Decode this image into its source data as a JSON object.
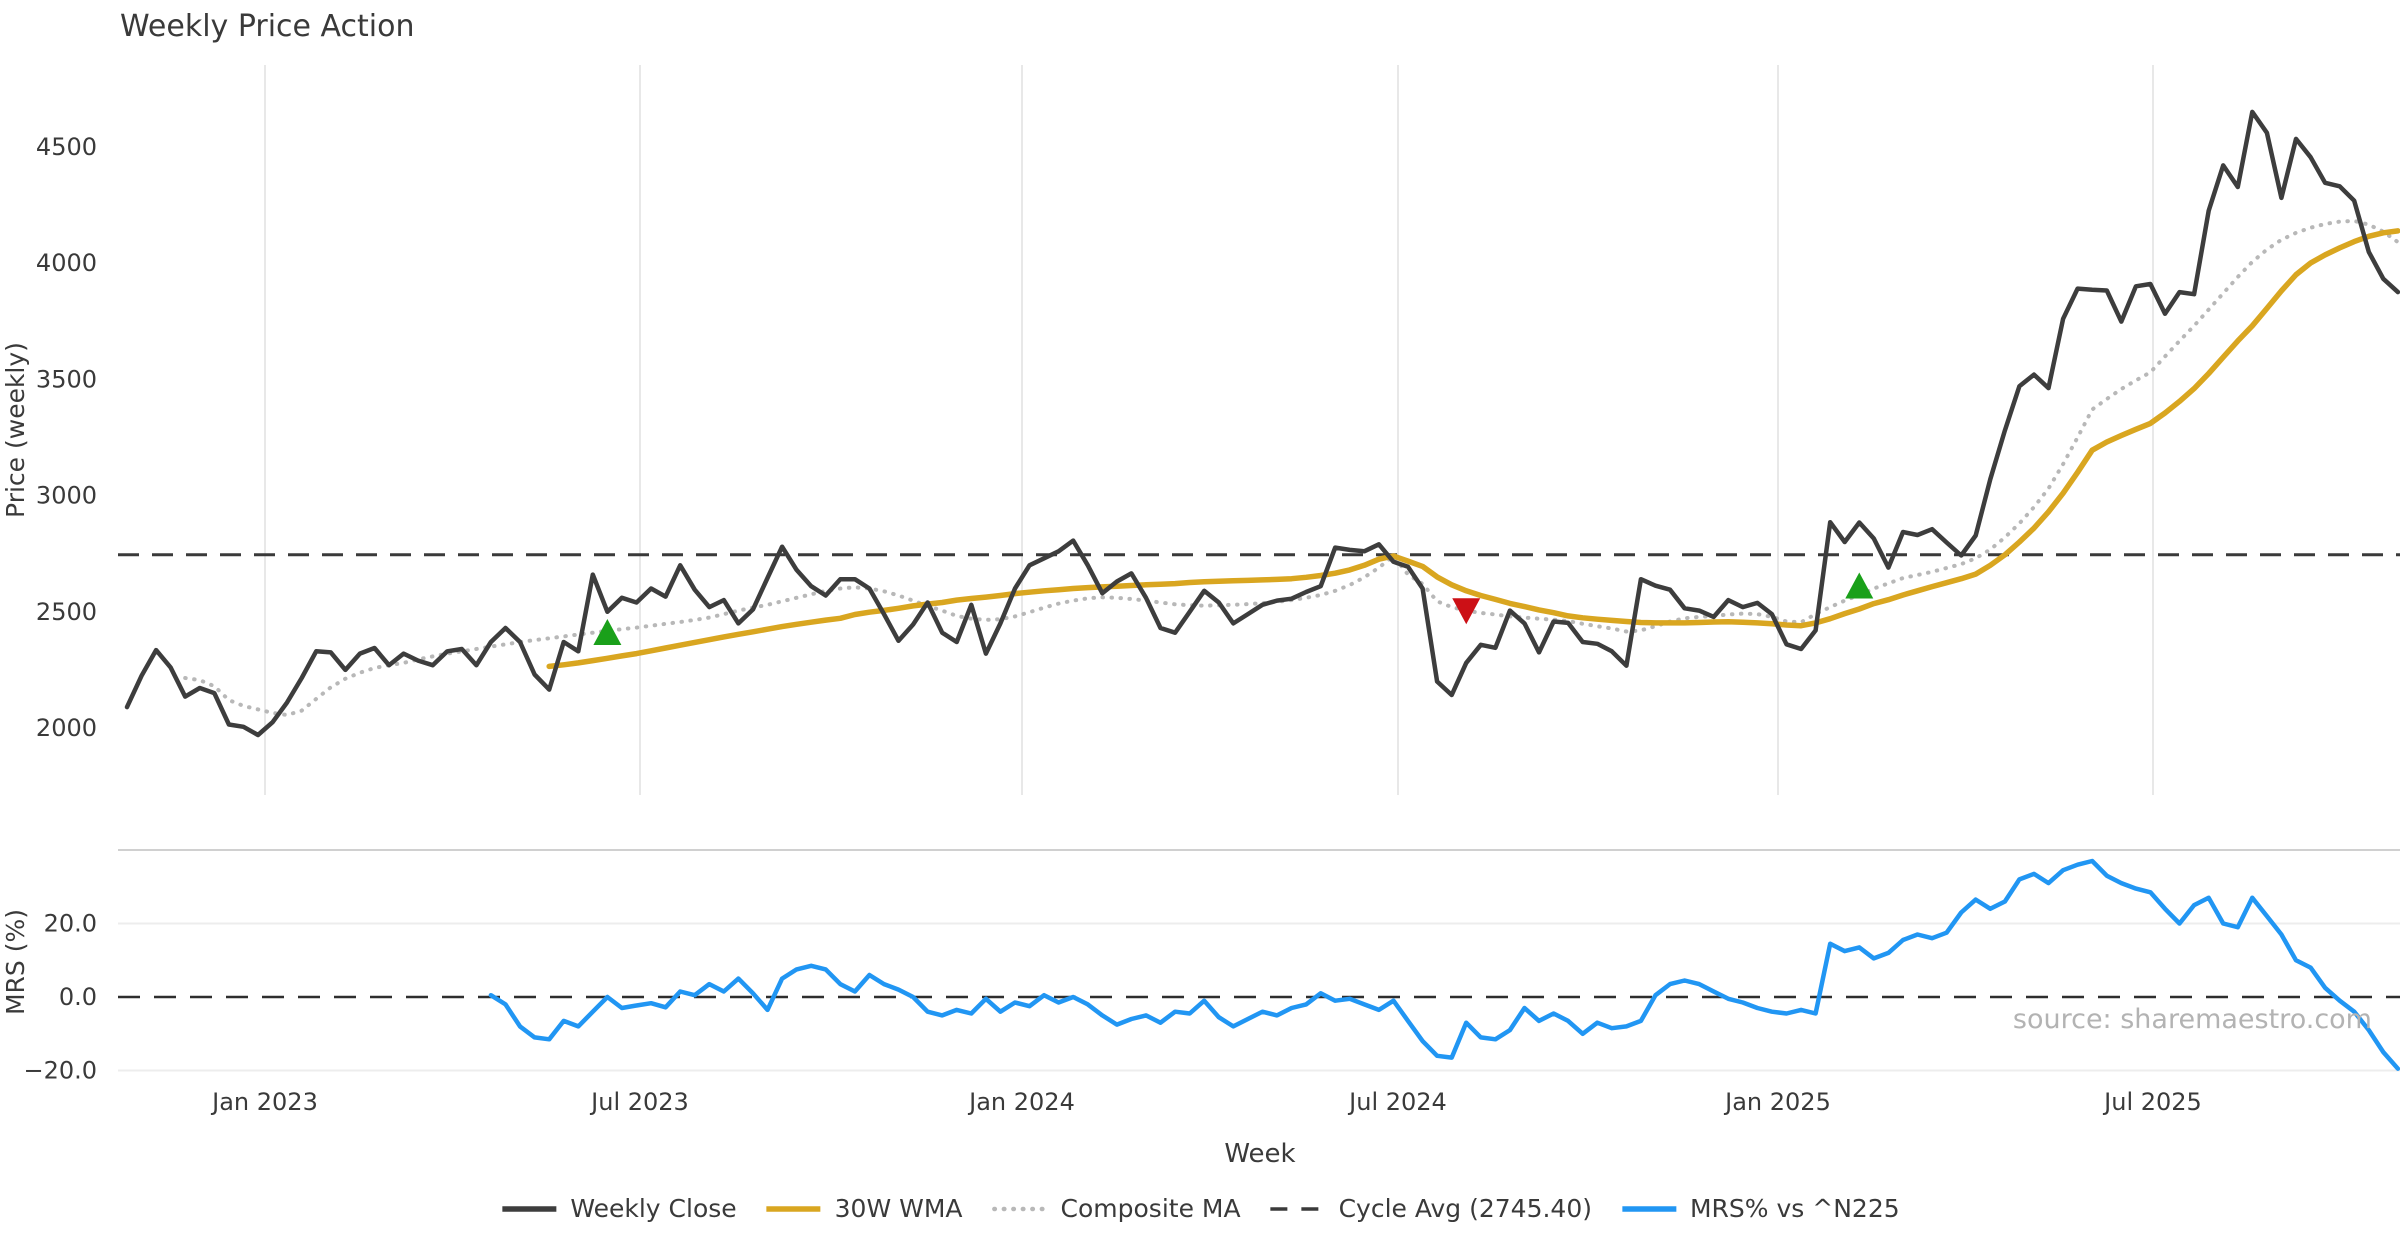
{
  "chart_data": {
    "type": "line",
    "title": "Weekly Price Action",
    "xlabel": "Week",
    "x_tick_labels": [
      "Jan 2023",
      "Jul 2023",
      "Jan 2024",
      "Jul 2024",
      "Jan 2025",
      "Jul 2025"
    ],
    "source_note": "source: sharemaestro.com",
    "legend": {
      "position": "bottom-center",
      "entries": [
        {
          "label": "Weekly Close",
          "color": "#3d3d3d",
          "style": "solid"
        },
        {
          "label": "30W WMA",
          "color": "#d9a620",
          "style": "solid"
        },
        {
          "label": "Composite MA",
          "color": "#b8b8b8",
          "style": "dotted"
        },
        {
          "label": "Cycle Avg (2745.40)",
          "color": "#3a3a3a",
          "style": "dashed"
        },
        {
          "label": "MRS% vs ^N225",
          "color": "#2196f3",
          "style": "solid"
        }
      ]
    },
    "panels": [
      {
        "id": "price",
        "ylabel": "Price (weekly)",
        "ylim": [
          1730,
          4850
        ],
        "ytick_labels": [
          "4500",
          "4000",
          "3500",
          "3000",
          "2500",
          "2000"
        ],
        "grid": "vertical-only",
        "cycle_avg": 2745.4,
        "series": [
          {
            "name": "Weekly Close",
            "color": "#3d3d3d",
            "style": "solid",
            "start_week": 0,
            "values": [
              2090,
              2225,
              2335,
              2260,
              2135,
              2172,
              2150,
              2015,
              2005,
              1970,
              2025,
              2110,
              2215,
              2330,
              2325,
              2250,
              2320,
              2344,
              2270,
              2320,
              2290,
              2270,
              2330,
              2340,
              2270,
              2370,
              2430,
              2370,
              2230,
              2165,
              2370,
              2330,
              2660,
              2500,
              2560,
              2540,
              2600,
              2565,
              2700,
              2595,
              2520,
              2550,
              2450,
              2510,
              2645,
              2780,
              2680,
              2610,
              2570,
              2640,
              2640,
              2600,
              2490,
              2375,
              2445,
              2540,
              2410,
              2370,
              2530,
              2320,
              2450,
              2600,
              2700,
              2730,
              2760,
              2806,
              2700,
              2580,
              2630,
              2665,
              2560,
              2430,
              2410,
              2500,
              2590,
              2540,
              2450,
              2490,
              2530,
              2548,
              2556,
              2585,
              2610,
              2776,
              2766,
              2760,
              2790,
              2715,
              2694,
              2600,
              2200,
              2142,
              2280,
              2358,
              2345,
              2505,
              2450,
              2325,
              2458,
              2452,
              2370,
              2362,
              2330,
              2268,
              2640,
              2612,
              2595,
              2515,
              2505,
              2478,
              2550,
              2520,
              2538,
              2490,
              2360,
              2340,
              2420,
              2885,
              2800,
              2884,
              2815,
              2690,
              2843,
              2830,
              2855,
              2798,
              2742,
              2828,
              3070,
              3280,
              3470,
              3520,
              3462,
              3760,
              3890,
              3885,
              3882,
              3748,
              3900,
              3910,
              3782,
              3875,
              3866,
              4225,
              4420,
              4327,
              4650,
              4560,
              4280,
              4534,
              4455,
              4345,
              4330,
              4268,
              4048,
              3932,
              3875
            ]
          },
          {
            "name": "30W WMA",
            "color": "#d9a620",
            "style": "solid",
            "start_week": 29,
            "values": [
              2265,
              2272,
              2280,
              2290,
              2300,
              2310,
              2320,
              2332,
              2344,
              2356,
              2368,
              2380,
              2392,
              2403,
              2414,
              2425,
              2436,
              2446,
              2455,
              2464,
              2472,
              2488,
              2498,
              2506,
              2515,
              2525,
              2533,
              2540,
              2550,
              2557,
              2563,
              2570,
              2578,
              2584,
              2590,
              2595,
              2600,
              2604,
              2607,
              2610,
              2613,
              2616,
              2618,
              2621,
              2626,
              2629,
              2631,
              2633,
              2635,
              2637,
              2639,
              2642,
              2648,
              2656,
              2666,
              2680,
              2700,
              2726,
              2740,
              2718,
              2695,
              2650,
              2616,
              2590,
              2570,
              2553,
              2536,
              2522,
              2508,
              2496,
              2482,
              2474,
              2468,
              2463,
              2458,
              2454,
              2452,
              2452,
              2452,
              2454,
              2456,
              2457,
              2455,
              2452,
              2448,
              2443,
              2440,
              2452,
              2470,
              2492,
              2512,
              2535,
              2552,
              2572,
              2590,
              2608,
              2625,
              2642,
              2662,
              2700,
              2745,
              2800,
              2860,
              2930,
              3010,
              3100,
              3195,
              3230,
              3258,
              3285,
              3310,
              3355,
              3405,
              3460,
              3525,
              3595,
              3665,
              3730,
              3805,
              3880,
              3950,
              4000,
              4035,
              4065,
              4092,
              4115,
              4130,
              4138
            ]
          },
          {
            "name": "Composite MA",
            "color": "#b8b8b8",
            "style": "dotted",
            "start_week": 4,
            "values": [
              2215,
              2206,
              2180,
              2120,
              2095,
              2080,
              2065,
              2056,
              2075,
              2125,
              2175,
              2212,
              2238,
              2258,
              2270,
              2280,
              2295,
              2308,
              2320,
              2330,
              2340,
              2350,
              2360,
              2370,
              2378,
              2386,
              2394,
              2402,
              2410,
              2418,
              2425,
              2432,
              2440,
              2448,
              2456,
              2465,
              2475,
              2490,
              2505,
              2518,
              2530,
              2545,
              2560,
              2575,
              2590,
              2600,
              2605,
              2600,
              2588,
              2570,
              2548,
              2525,
              2505,
              2482,
              2470,
              2465,
              2468,
              2480,
              2498,
              2518,
              2535,
              2548,
              2558,
              2562,
              2560,
              2555,
              2548,
              2540,
              2532,
              2528,
              2526,
              2528,
              2530,
              2533,
              2537,
              2543,
              2550,
              2560,
              2572,
              2590,
              2615,
              2648,
              2690,
              2740,
              2660,
              2620,
              2545,
              2520,
              2505,
              2495,
              2488,
              2480,
              2475,
              2470,
              2466,
              2460,
              2448,
              2438,
              2428,
              2415,
              2420,
              2438,
              2458,
              2472,
              2478,
              2482,
              2488,
              2492,
              2490,
              2478,
              2458,
              2455,
              2490,
              2520,
              2548,
              2572,
              2600,
              2622,
              2645,
              2658,
              2672,
              2688,
              2705,
              2730,
              2768,
              2820,
              2880,
              2950,
              3030,
              3135,
              3250,
              3370,
              3415,
              3458,
              3495,
              3530,
              3598,
              3665,
              3730,
              3800,
              3870,
              3940,
              4005,
              4058,
              4100,
              4130,
              4152,
              4168,
              4178,
              4181,
              4165,
              4135,
              4090
            ]
          }
        ],
        "signals": {
          "buy_color": "#1aa01a",
          "sell_color": "#cc1016",
          "buy": [
            {
              "week": 33,
              "price": 2400
            },
            {
              "week": 119,
              "price": 2600
            }
          ],
          "sell": [
            {
              "week": 92,
              "price": 2515
            }
          ]
        }
      },
      {
        "id": "mrs",
        "ylabel": "MRS (%)",
        "ylim": [
          -22,
          40
        ],
        "ytick_labels": [
          "20.0",
          "0.0",
          "−20.0"
        ],
        "grid": "horizontal-only",
        "zero_line": 0,
        "series": [
          {
            "name": "MRS% vs ^N225",
            "color": "#2196f3",
            "style": "solid",
            "start_week": 25,
            "values": [
              0.5,
              -2,
              -8,
              -11,
              -11.5,
              -6.5,
              -8,
              -4,
              0,
              -3,
              -2.3,
              -1.7,
              -2.8,
              1.5,
              0.5,
              3.5,
              1.5,
              5,
              1,
              -3.5,
              5,
              7.5,
              8.5,
              7.5,
              3.5,
              1.5,
              6,
              3.5,
              2,
              0,
              -4,
              -5,
              -3.5,
              -4.5,
              -0.5,
              -4,
              -1.5,
              -2.5,
              0.5,
              -1.5,
              0,
              -2,
              -5,
              -7.5,
              -6,
              -5,
              -7,
              -4,
              -4.5,
              -1,
              -5.5,
              -8,
              -6,
              -4,
              -5,
              -3,
              -2,
              1,
              -1,
              -0.5,
              -2,
              -3.5,
              -1,
              -6.5,
              -12,
              -16,
              -16.5,
              -7,
              -11,
              -11.5,
              -9,
              -3,
              -6.5,
              -4.5,
              -6.5,
              -10,
              -7,
              -8.5,
              -8,
              -6.5,
              0.5,
              3.5,
              4.5,
              3.5,
              1.5,
              -0.5,
              -1.5,
              -3,
              -4,
              -4.5,
              -3.5,
              -4.5,
              14.5,
              12.5,
              13.5,
              10.5,
              12,
              15.5,
              17,
              16,
              17.5,
              23,
              26.5,
              24,
              26,
              32,
              33.5,
              31,
              34.5,
              36,
              37,
              33,
              31,
              29.5,
              28.5,
              24,
              20,
              25,
              27,
              20,
              19,
              27,
              22,
              17,
              10,
              8,
              2.5,
              -1,
              -4,
              -9,
              -15,
              -19.5
            ]
          }
        ]
      }
    ]
  }
}
